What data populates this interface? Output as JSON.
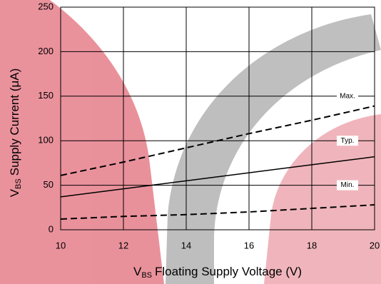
{
  "chart_data": {
    "type": "line",
    "x_label": {
      "main": "V",
      "sub": "BS",
      "rest": "Floating Supply Voltage (V)"
    },
    "y_label": {
      "main": "V",
      "sub": "BS",
      "rest": "Supply Current (μA)"
    },
    "x": [
      10,
      12,
      14,
      16,
      18,
      20
    ],
    "series": [
      {
        "name": "Max.",
        "color": "#000000",
        "dashed": true,
        "values": [
          61,
          76,
          92,
          108,
          123,
          139
        ]
      },
      {
        "name": "Typ.",
        "color": "#000000",
        "dashed": false,
        "values": [
          37,
          46,
          55,
          64,
          73,
          82
        ]
      },
      {
        "name": "Min.",
        "color": "#000000",
        "dashed": true,
        "values": [
          12,
          15,
          17,
          20,
          24,
          28
        ]
      }
    ],
    "xlim": [
      10,
      20
    ],
    "xticks": [
      10,
      12,
      14,
      16,
      18,
      20
    ],
    "ylim": [
      0,
      250
    ],
    "yticks": [
      0,
      50,
      100,
      150,
      200,
      250
    ],
    "grid": true
  }
}
